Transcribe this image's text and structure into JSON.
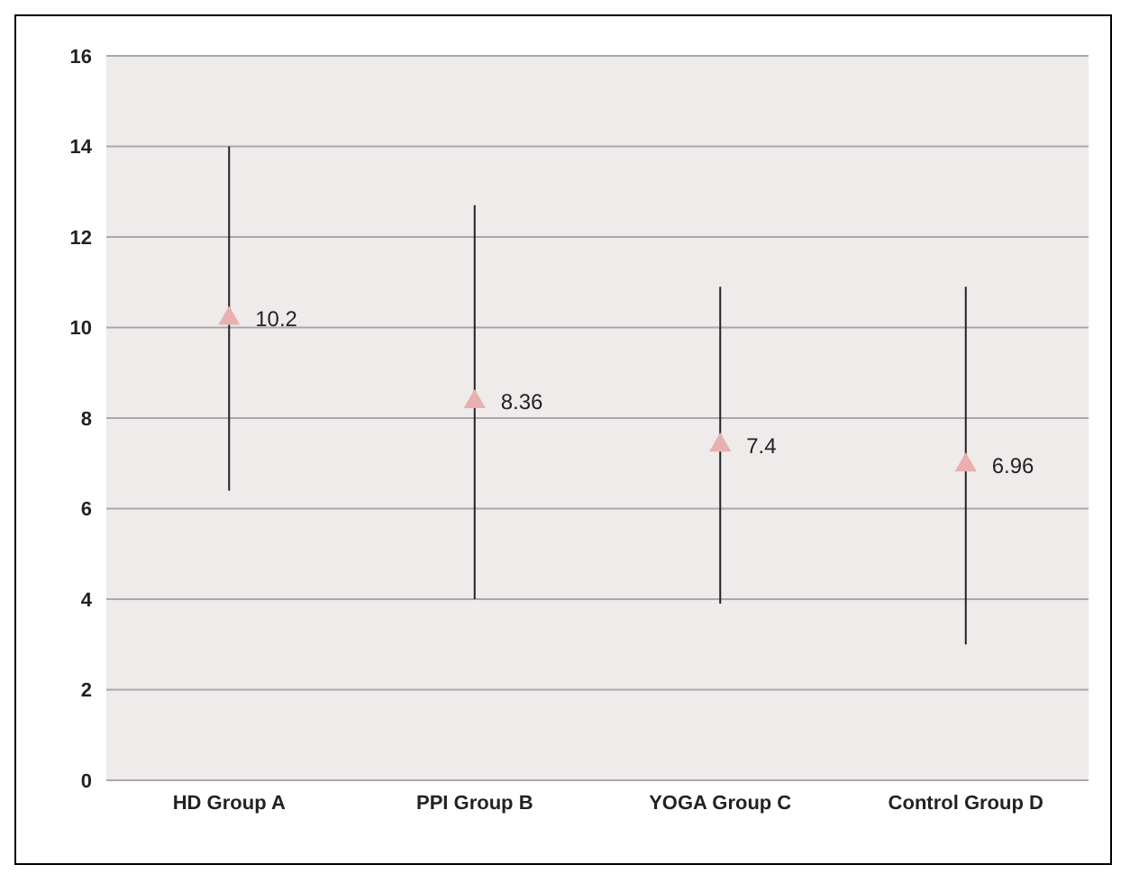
{
  "chart_data": {
    "type": "scatter",
    "categories": [
      "HD Group A",
      "PPI Group B",
      "YOGA Group C",
      "Control Group D"
    ],
    "values": [
      10.2,
      8.36,
      7.4,
      6.96
    ],
    "errors": [
      [
        6.4,
        14.0
      ],
      [
        4.0,
        12.7
      ],
      [
        3.9,
        10.9
      ],
      [
        3.0,
        10.9
      ]
    ],
    "color": "#e8b0b0",
    "marker": "triangle",
    "data_labels": true,
    "ylim": [
      0,
      16
    ],
    "yticks": [
      0,
      2,
      4,
      6,
      8,
      10,
      12,
      14,
      16
    ],
    "grid": "y"
  }
}
